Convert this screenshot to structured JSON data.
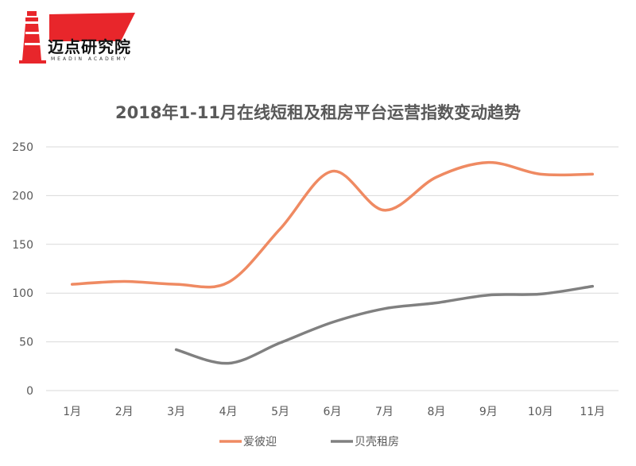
{
  "logo": {
    "name": "迈点研究院",
    "tagline": "MEADIN ACADEMY",
    "primary_color": "#e8262b"
  },
  "chart_data": {
    "type": "line",
    "title": "2018年1-11月在线短租及租房平台运营指数变动趋势",
    "xlabel": "",
    "ylabel": "",
    "categories": [
      "1月",
      "2月",
      "3月",
      "4月",
      "5月",
      "6月",
      "7月",
      "8月",
      "9月",
      "10月",
      "11月"
    ],
    "ylim": [
      0,
      250
    ],
    "yticks": [
      0,
      50,
      100,
      150,
      200,
      250
    ],
    "grid": true,
    "legend": "bottom",
    "series": [
      {
        "name": "爱彼迎",
        "color": "#ef8a62",
        "values": [
          109,
          112,
          109,
          111,
          166,
          225,
          185,
          219,
          234,
          222,
          222
        ]
      },
      {
        "name": "贝壳租房",
        "color": "#808080",
        "values": [
          null,
          null,
          42,
          28,
          49,
          70,
          84,
          90,
          98,
          99,
          107
        ]
      }
    ]
  }
}
